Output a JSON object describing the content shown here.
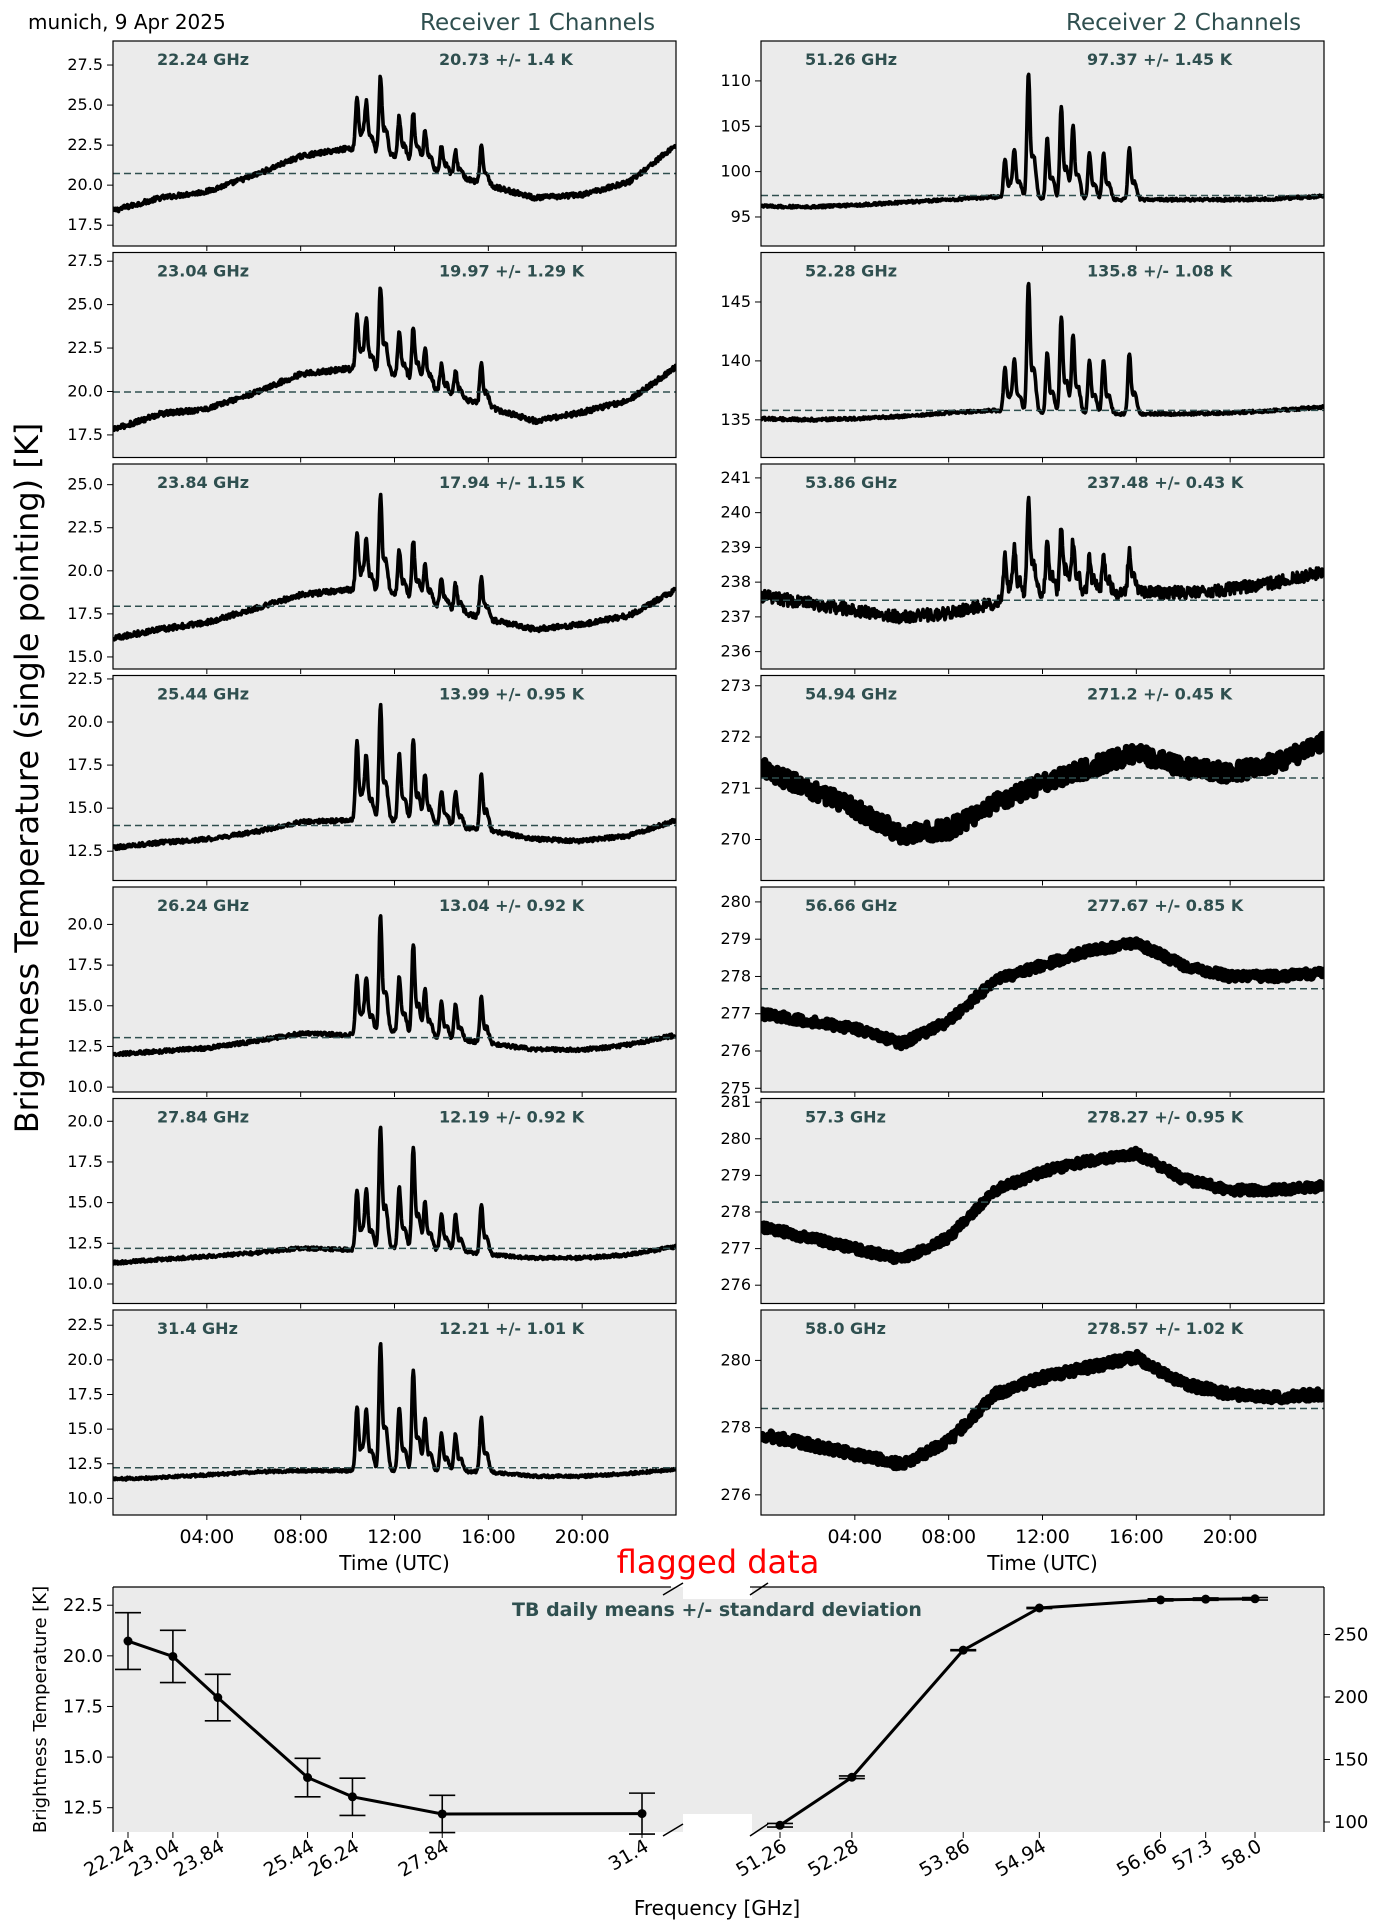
{
  "header": {
    "location_date": "munich, 9 Apr 2025",
    "receiver1_title": "Receiver 1 Channels",
    "receiver2_title": "Receiver 2 Channels",
    "ylabel_main": "Brightness Temperature (single pointing) [K]"
  },
  "colors": {
    "panel_bg": "#ebebeb",
    "trace": "#000000",
    "mean_line": "#2f4f4f",
    "label_text": "#2f4f4f",
    "flag_text": "#ff0000"
  },
  "chart_data": [
    {
      "type": "line",
      "group": "receiver1",
      "xlabel": "Time (UTC)",
      "x_ticks": [
        "04:00",
        "08:00",
        "12:00",
        "16:00",
        "20:00"
      ],
      "x_range_hours": [
        0,
        24
      ],
      "shared_peaks_hours": [
        10.4,
        10.8,
        11.4,
        12.2,
        12.8,
        13.3,
        14.0,
        14.6,
        15.7
      ],
      "panels": [
        {
          "channel": "22.24 GHz",
          "stat": "20.73 +/- 1.4 K",
          "mean": 20.73,
          "ylim": [
            16.2,
            29.0
          ],
          "yticks": [
            "17.5",
            "20.0",
            "22.5",
            "25.0",
            "27.5"
          ],
          "profile_hours": [
            0,
            2,
            4,
            6,
            8,
            10,
            12,
            14,
            16,
            18,
            20,
            22,
            24
          ],
          "profile_values": [
            18.4,
            19.2,
            19.6,
            20.6,
            21.8,
            22.3,
            21.8,
            20.8,
            20.0,
            19.2,
            19.4,
            20.2,
            22.5
          ],
          "peak_heights": [
            3.2,
            2.8,
            4.7,
            2.5,
            3.0,
            2.2,
            1.6,
            1.5,
            2.2
          ],
          "noise": 0.15
        },
        {
          "channel": "23.04 GHz",
          "stat": "19.97 +/- 1.29 K",
          "mean": 19.97,
          "ylim": [
            16.2,
            28.0
          ],
          "yticks": [
            "17.5",
            "20.0",
            "22.5",
            "25.0",
            "27.5"
          ],
          "profile_hours": [
            0,
            2,
            4,
            6,
            8,
            10,
            12,
            14,
            16,
            18,
            20,
            22,
            24
          ],
          "profile_values": [
            17.8,
            18.7,
            19.0,
            19.9,
            21.0,
            21.3,
            21.0,
            20.0,
            19.1,
            18.3,
            18.8,
            19.5,
            21.4
          ],
          "peak_heights": [
            3.1,
            2.7,
            4.8,
            2.4,
            3.0,
            2.1,
            1.5,
            1.4,
            2.4
          ],
          "noise": 0.15
        },
        {
          "channel": "23.84 GHz",
          "stat": "17.94 +/- 1.15 K",
          "mean": 17.94,
          "ylim": [
            14.3,
            26.2
          ],
          "yticks": [
            "15.0",
            "17.5",
            "20.0",
            "22.5",
            "25.0"
          ],
          "profile_hours": [
            0,
            2,
            4,
            6,
            8,
            10,
            12,
            14,
            16,
            18,
            20,
            22,
            24
          ],
          "profile_values": [
            16.1,
            16.6,
            17.0,
            17.8,
            18.6,
            18.9,
            18.6,
            17.9,
            17.2,
            16.6,
            16.9,
            17.4,
            18.9
          ],
          "peak_heights": [
            3.2,
            2.8,
            5.5,
            2.6,
            3.3,
            2.2,
            1.6,
            1.5,
            2.2
          ],
          "noise": 0.15
        },
        {
          "channel": "25.44 GHz",
          "stat": "13.99 +/- 0.95 K",
          "mean": 13.99,
          "ylim": [
            10.8,
            22.7
          ],
          "yticks": [
            "12.5",
            "15.0",
            "17.5",
            "20.0",
            "22.5"
          ],
          "profile_hours": [
            0,
            2,
            4,
            6,
            8,
            10,
            12,
            14,
            16,
            18,
            20,
            22,
            24
          ],
          "profile_values": [
            12.7,
            13.0,
            13.2,
            13.6,
            14.2,
            14.3,
            14.3,
            14.0,
            13.7,
            13.2,
            13.1,
            13.4,
            14.3
          ],
          "peak_heights": [
            4.4,
            3.4,
            6.5,
            3.8,
            4.7,
            2.7,
            2.0,
            2.0,
            3.2
          ],
          "noise": 0.12
        },
        {
          "channel": "26.24 GHz",
          "stat": "13.04 +/- 0.92 K",
          "mean": 13.04,
          "ylim": [
            9.7,
            22.3
          ],
          "yticks": [
            "10.0",
            "12.5",
            "15.0",
            "17.5",
            "20.0"
          ],
          "profile_hours": [
            0,
            2,
            4,
            6,
            8,
            10,
            12,
            14,
            16,
            18,
            20,
            22,
            24
          ],
          "profile_values": [
            12.0,
            12.2,
            12.4,
            12.8,
            13.3,
            13.2,
            13.4,
            13.0,
            12.7,
            12.3,
            12.3,
            12.6,
            13.2
          ],
          "peak_heights": [
            3.4,
            3.2,
            7.0,
            3.4,
            5.4,
            2.8,
            2.2,
            2.2,
            2.7
          ],
          "noise": 0.12
        },
        {
          "channel": "27.84 GHz",
          "stat": "12.19 +/- 0.92 K",
          "mean": 12.19,
          "ylim": [
            8.8,
            21.4
          ],
          "yticks": [
            "10.0",
            "12.5",
            "15.0",
            "17.5",
            "20.0"
          ],
          "profile_hours": [
            0,
            2,
            4,
            6,
            8,
            10,
            12,
            14,
            16,
            18,
            20,
            22,
            24
          ],
          "profile_values": [
            11.3,
            11.5,
            11.7,
            11.9,
            12.2,
            12.1,
            12.2,
            12.1,
            11.8,
            11.6,
            11.6,
            11.8,
            12.3
          ],
          "peak_heights": [
            3.6,
            3.3,
            7.3,
            3.7,
            6.1,
            2.8,
            2.2,
            2.2,
            3.0
          ],
          "noise": 0.1
        },
        {
          "channel": "31.4 GHz",
          "stat": "12.21 +/- 1.01 K",
          "mean": 12.21,
          "ylim": [
            8.8,
            23.6
          ],
          "yticks": [
            "10.0",
            "12.5",
            "15.0",
            "17.5",
            "20.0",
            "22.5"
          ],
          "profile_hours": [
            0,
            2,
            4,
            6,
            8,
            10,
            12,
            14,
            16,
            18,
            20,
            22,
            24
          ],
          "profile_values": [
            11.4,
            11.5,
            11.7,
            11.9,
            12.0,
            12.0,
            12.0,
            12.0,
            11.9,
            11.6,
            11.6,
            11.8,
            12.1
          ],
          "peak_heights": [
            4.5,
            4.0,
            9.0,
            4.5,
            7.1,
            3.6,
            2.6,
            2.6,
            3.8
          ],
          "noise": 0.1
        }
      ]
    },
    {
      "type": "line",
      "group": "receiver2",
      "xlabel": "Time (UTC)",
      "x_ticks": [
        "04:00",
        "08:00",
        "12:00",
        "16:00",
        "20:00"
      ],
      "x_range_hours": [
        0,
        24
      ],
      "panels": [
        {
          "channel": "51.26 GHz",
          "stat": "97.37 +/- 1.45 K",
          "mean": 97.37,
          "ylim": [
            91.8,
            114.4
          ],
          "yticks": [
            "95",
            "100",
            "105",
            "110"
          ],
          "profile_hours": [
            0,
            2,
            4,
            6,
            8,
            10,
            12,
            14,
            16,
            18,
            20,
            22,
            24
          ],
          "profile_values": [
            96.2,
            96.1,
            96.3,
            96.6,
            96.9,
            97.2,
            97.0,
            96.9,
            96.9,
            96.9,
            96.9,
            97.0,
            97.3
          ],
          "peak_heights": [
            4.0,
            5.0,
            13.5,
            6.5,
            10.0,
            8.0,
            5.0,
            5.0,
            5.5
          ],
          "noise": 0.15
        },
        {
          "channel": "52.28 GHz",
          "stat": "135.8 +/- 1.08 K",
          "mean": 135.8,
          "ylim": [
            131.8,
            149.2
          ],
          "yticks": [
            "135",
            "140",
            "145"
          ],
          "profile_hours": [
            0,
            2,
            4,
            6,
            8,
            10,
            12,
            14,
            16,
            18,
            20,
            22,
            24
          ],
          "profile_values": [
            135.1,
            135.0,
            135.1,
            135.3,
            135.6,
            135.8,
            135.6,
            135.5,
            135.5,
            135.5,
            135.6,
            135.8,
            136.1
          ],
          "peak_heights": [
            3.5,
            4.0,
            10.8,
            5.0,
            8.0,
            6.5,
            4.5,
            4.5,
            5.0
          ],
          "noise": 0.12
        },
        {
          "channel": "53.86 GHz",
          "stat": "237.48 +/- 0.43 K",
          "mean": 237.48,
          "ylim": [
            235.5,
            241.4
          ],
          "yticks": [
            "236",
            "237",
            "238",
            "239",
            "240",
            "241"
          ],
          "profile_hours": [
            0,
            2,
            4,
            6,
            8,
            10,
            12,
            14,
            16,
            18,
            20,
            22,
            24
          ],
          "profile_values": [
            237.6,
            237.4,
            237.2,
            237.0,
            237.1,
            237.4,
            237.7,
            237.7,
            237.7,
            237.7,
            237.8,
            238.0,
            238.3
          ],
          "peak_heights": [
            1.2,
            1.4,
            2.6,
            1.4,
            1.9,
            1.4,
            1.0,
            1.0,
            1.2
          ],
          "noise": 0.18
        },
        {
          "channel": "54.94 GHz",
          "stat": "271.2 +/- 0.45 K",
          "mean": 271.2,
          "ylim": [
            269.2,
            273.2
          ],
          "yticks": [
            "270",
            "271",
            "272",
            "273"
          ],
          "profile_hours": [
            0,
            2,
            4,
            6,
            8,
            10,
            12,
            14,
            16,
            18,
            20,
            22,
            24
          ],
          "profile_values": [
            271.4,
            271.0,
            270.6,
            270.1,
            270.2,
            270.7,
            271.1,
            271.4,
            271.7,
            271.4,
            271.3,
            271.5,
            271.9
          ],
          "peak_heights": [
            0,
            0,
            0,
            0,
            0,
            0,
            0,
            0,
            0
          ],
          "noise": 0.18
        },
        {
          "channel": "56.66 GHz",
          "stat": "277.67 +/- 0.85 K",
          "mean": 277.67,
          "ylim": [
            274.9,
            280.4
          ],
          "yticks": [
            "275",
            "276",
            "277",
            "278",
            "279",
            "280"
          ],
          "profile_hours": [
            0,
            2,
            4,
            6,
            8,
            10,
            12,
            14,
            16,
            18,
            20,
            22,
            24
          ],
          "profile_values": [
            277.0,
            276.8,
            276.6,
            276.2,
            276.8,
            277.9,
            278.3,
            278.7,
            278.9,
            278.3,
            278.0,
            278.0,
            278.1
          ],
          "peak_heights": [
            0,
            0,
            0,
            0,
            0,
            0,
            0,
            0,
            0
          ],
          "noise": 0.12
        },
        {
          "channel": "57.3 GHz",
          "stat": "278.27 +/- 0.95 K",
          "mean": 278.27,
          "ylim": [
            275.5,
            281.1
          ],
          "yticks": [
            "276",
            "277",
            "278",
            "279",
            "280",
            "281"
          ],
          "profile_hours": [
            0,
            2,
            4,
            6,
            8,
            10,
            12,
            14,
            16,
            18,
            20,
            22,
            24
          ],
          "profile_values": [
            277.6,
            277.3,
            277.0,
            276.7,
            277.3,
            278.6,
            279.1,
            279.4,
            279.6,
            278.9,
            278.6,
            278.6,
            278.7
          ],
          "peak_heights": [
            0,
            0,
            0,
            0,
            0,
            0,
            0,
            0,
            0
          ],
          "noise": 0.12
        },
        {
          "channel": "58.0 GHz",
          "stat": "278.57 +/- 1.02 K",
          "mean": 278.57,
          "ylim": [
            275.4,
            281.5
          ],
          "yticks": [
            "276",
            "278",
            "280"
          ],
          "profile_hours": [
            0,
            2,
            4,
            6,
            8,
            10,
            12,
            14,
            16,
            18,
            20,
            22,
            24
          ],
          "profile_values": [
            277.8,
            277.5,
            277.2,
            276.9,
            277.6,
            279.0,
            279.5,
            279.8,
            280.1,
            279.3,
            279.0,
            278.9,
            279.0
          ],
          "peak_heights": [
            0,
            0,
            0,
            0,
            0,
            0,
            0,
            0,
            0
          ],
          "noise": 0.15
        }
      ]
    },
    {
      "type": "line",
      "group": "daily_means",
      "title": "TB daily means +/- standard deviation",
      "flag_label": "flagged data",
      "xlabel": "Frequency [GHz]",
      "ylabel_left": "Brightness Temperature [K]",
      "left": {
        "frequencies": [
          22.24,
          23.04,
          23.84,
          25.44,
          26.24,
          27.84,
          31.4
        ],
        "tick_labels": [
          "22.24",
          "23.04",
          "23.84",
          "25.44",
          "26.24",
          "27.84",
          "31.4"
        ],
        "means": [
          20.73,
          19.97,
          17.94,
          13.99,
          13.04,
          12.19,
          12.21
        ],
        "std": [
          1.4,
          1.29,
          1.15,
          0.95,
          0.92,
          0.92,
          1.01
        ],
        "ylim": [
          11.3,
          23.4
        ],
        "yticks": [
          "12.5",
          "15.0",
          "17.5",
          "20.0",
          "22.5"
        ]
      },
      "right": {
        "frequencies": [
          51.26,
          52.28,
          53.86,
          54.94,
          56.66,
          57.3,
          58.0
        ],
        "tick_labels": [
          "51.26",
          "52.28",
          "53.86",
          "54.94",
          "56.66",
          "57.3",
          "58.0"
        ],
        "means": [
          97.37,
          135.8,
          237.48,
          271.2,
          277.67,
          278.27,
          278.57
        ],
        "std": [
          1.45,
          1.08,
          0.43,
          0.45,
          0.85,
          0.95,
          1.02
        ],
        "ylim": [
          92,
          288
        ],
        "yticks": [
          "100",
          "150",
          "200",
          "250"
        ]
      }
    }
  ]
}
